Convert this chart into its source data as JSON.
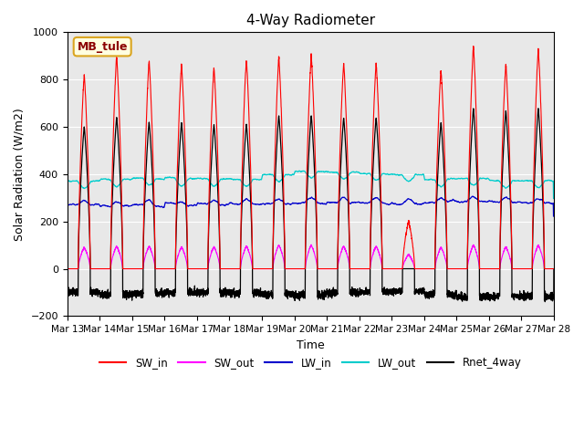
{
  "title": "4-Way Radiometer",
  "xlabel": "Time",
  "ylabel": "Solar Radiation (W/m2)",
  "station_label": "MB_tule",
  "ylim": [
    -200,
    1000
  ],
  "background_color": "#e8e8e8",
  "colors": {
    "SW_in": "#ff0000",
    "SW_out": "#ff00ff",
    "LW_in": "#0000cc",
    "LW_out": "#00cccc",
    "Rnet_4way": "#000000"
  },
  "n_days": 15,
  "start_day": 13,
  "points_per_day": 288,
  "SW_in_peak": [
    820,
    900,
    880,
    865,
    850,
    885,
    895,
    900,
    870,
    870,
    200,
    840,
    940,
    865,
    930
  ],
  "SW_out_peak": [
    90,
    95,
    95,
    92,
    92,
    95,
    100,
    100,
    95,
    95,
    60,
    90,
    100,
    92,
    100
  ],
  "LW_in_base": [
    270,
    265,
    268,
    270,
    272,
    274,
    275,
    278,
    280,
    278,
    274,
    282,
    284,
    282,
    278
  ],
  "LW_out_base": [
    370,
    378,
    382,
    382,
    380,
    378,
    398,
    412,
    408,
    402,
    398,
    378,
    382,
    372,
    372
  ],
  "Rnet_peak": [
    600,
    640,
    620,
    618,
    610,
    612,
    648,
    648,
    638,
    638,
    0,
    618,
    678,
    668,
    678
  ],
  "Rnet_night": [
    -100,
    -110,
    -105,
    -100,
    -100,
    -102,
    -108,
    -110,
    -100,
    -98,
    -95,
    -108,
    -118,
    -118,
    -118
  ],
  "yticks": [
    -200,
    0,
    200,
    400,
    600,
    800,
    1000
  ]
}
